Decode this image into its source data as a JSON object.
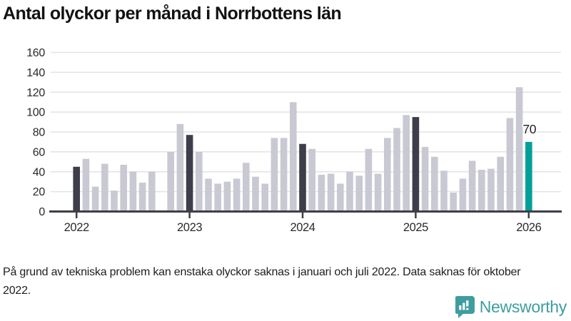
{
  "title": "Antal olyckor per månad i Norrbottens län",
  "footnote": "På grund av tekniska problem kan enstaka olyckor saknas i januari och juli 2022. Data saknas för oktober 2022.",
  "branding": {
    "name": "Newsworthy",
    "icon": "bar-chart-speech-bubble-icon",
    "color": "#3f9da0"
  },
  "colors": {
    "bar_default": "#c9c9d3",
    "bar_january_dark": "#3e3e4a",
    "bar_accent_teal": "#00a099",
    "gridline": "#e3e3e3",
    "axis": "#3f3f46",
    "tick_label": "#2a2a2e",
    "annotation_text": "#1d1d1d"
  },
  "chart_data": {
    "type": "bar",
    "title": "Antal olyckor per månad i Norrbottens län",
    "xlabel": "",
    "ylabel": "",
    "ylim": [
      0,
      160
    ],
    "grid": true,
    "y_ticks": [
      0,
      20,
      40,
      60,
      80,
      100,
      120,
      140,
      160
    ],
    "x_tick_labels": [
      "2022",
      "2023",
      "2024",
      "2025",
      "2026"
    ],
    "legend": "none",
    "style_note": "monthly bars; January bars dark; latest month teal with value label; October 2022 missing",
    "annotation": {
      "text": "70",
      "year": 2026,
      "month": 1
    },
    "series": [
      {
        "year": 2022,
        "values": [
          45,
          53,
          25,
          48,
          21,
          47,
          40,
          29,
          40,
          null,
          60,
          88
        ]
      },
      {
        "year": 2023,
        "values": [
          77,
          60,
          33,
          28,
          30,
          33,
          49,
          35,
          28,
          74,
          74,
          110
        ]
      },
      {
        "year": 2024,
        "values": [
          68,
          63,
          37,
          38,
          28,
          40,
          36,
          63,
          38,
          74,
          84,
          97
        ]
      },
      {
        "year": 2025,
        "values": [
          95,
          65,
          55,
          41,
          19,
          33,
          51,
          42,
          43,
          55,
          94,
          125
        ]
      },
      {
        "year": 2026,
        "values": [
          70
        ]
      }
    ]
  }
}
